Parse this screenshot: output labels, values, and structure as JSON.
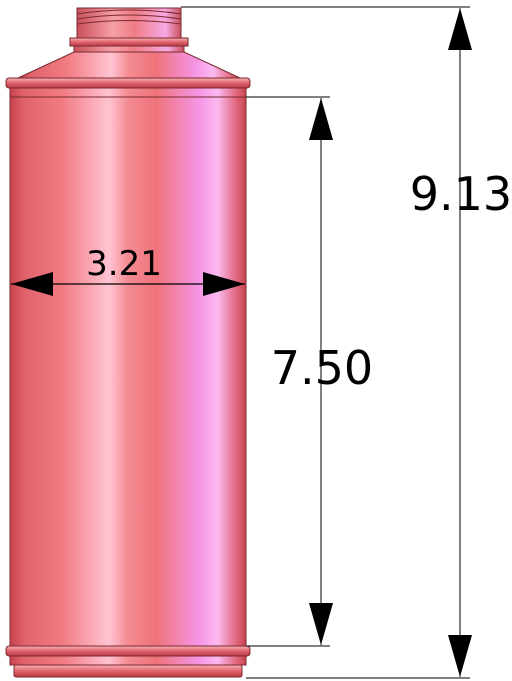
{
  "dimensions": {
    "overall_height": "9.13",
    "body_height": "7.50",
    "body_diameter": "3.21"
  },
  "colors": {
    "bottle_base": "#f07a80",
    "bottle_dark": "#c8434d",
    "bottle_highlight": "#ffc8dd",
    "bottle_accent": "#f38fe0",
    "line": "#000000",
    "background": "#ffffff"
  }
}
